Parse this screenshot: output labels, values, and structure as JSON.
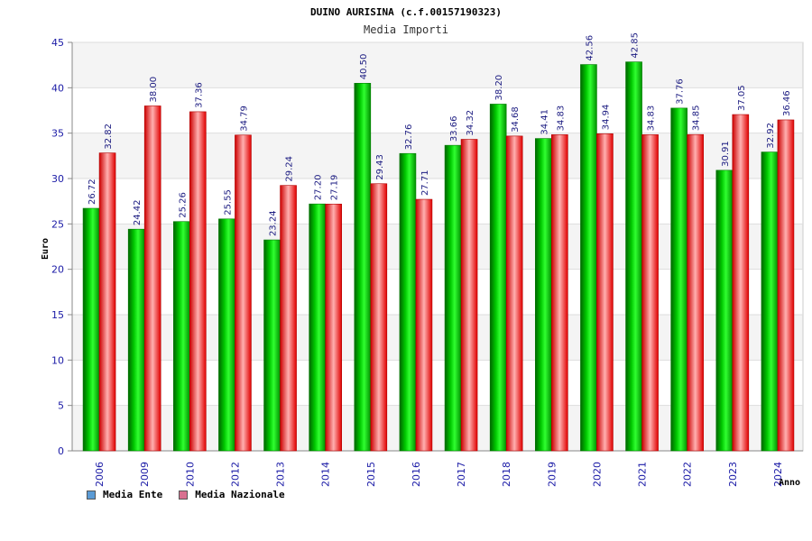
{
  "chart_data": {
    "type": "bar",
    "title": "DUINO AURISINA (c.f.00157190323)",
    "subtitle": "Media Importi",
    "xlabel": "Anno",
    "ylabel": "Euro",
    "ylim": [
      0,
      45
    ],
    "yticks": [
      0,
      5,
      10,
      15,
      20,
      25,
      30,
      35,
      40,
      45
    ],
    "grid": true,
    "legend_position": "bottom-left",
    "categories": [
      "2006",
      "2009",
      "2010",
      "2012",
      "2013",
      "2014",
      "2015",
      "2016",
      "2017",
      "2018",
      "2019",
      "2020",
      "2021",
      "2022",
      "2023",
      "2024"
    ],
    "series": [
      {
        "name": "Media Ente",
        "color": "#00b300",
        "legend_color": "#5b9bd5",
        "values": [
          26.72,
          24.42,
          25.26,
          25.55,
          23.24,
          27.2,
          40.5,
          32.76,
          33.66,
          38.2,
          34.41,
          42.56,
          42.85,
          37.76,
          30.91,
          32.92
        ],
        "labels": [
          "26.72",
          "24.42",
          "25.26",
          "25.55",
          "23.24",
          "27.20",
          "40.50",
          "32.76",
          "33.66",
          "38.20",
          "34.41",
          "42.56",
          "42.85",
          "37.76",
          "30.91",
          "32.92"
        ]
      },
      {
        "name": "Media Nazionale",
        "color": "#e00000",
        "legend_color": "#d87090",
        "values": [
          32.82,
          38.0,
          37.36,
          34.79,
          29.24,
          27.19,
          29.43,
          27.71,
          34.32,
          34.68,
          34.83,
          34.94,
          34.83,
          34.85,
          37.05,
          36.46
        ],
        "labels": [
          "32.82",
          "38.00",
          "37.36",
          "34.79",
          "29.24",
          "27.19",
          "29.43",
          "27.71",
          "34.32",
          "34.68",
          "34.83",
          "34.94",
          "34.83",
          "34.85",
          "37.05",
          "36.46"
        ]
      }
    ]
  }
}
